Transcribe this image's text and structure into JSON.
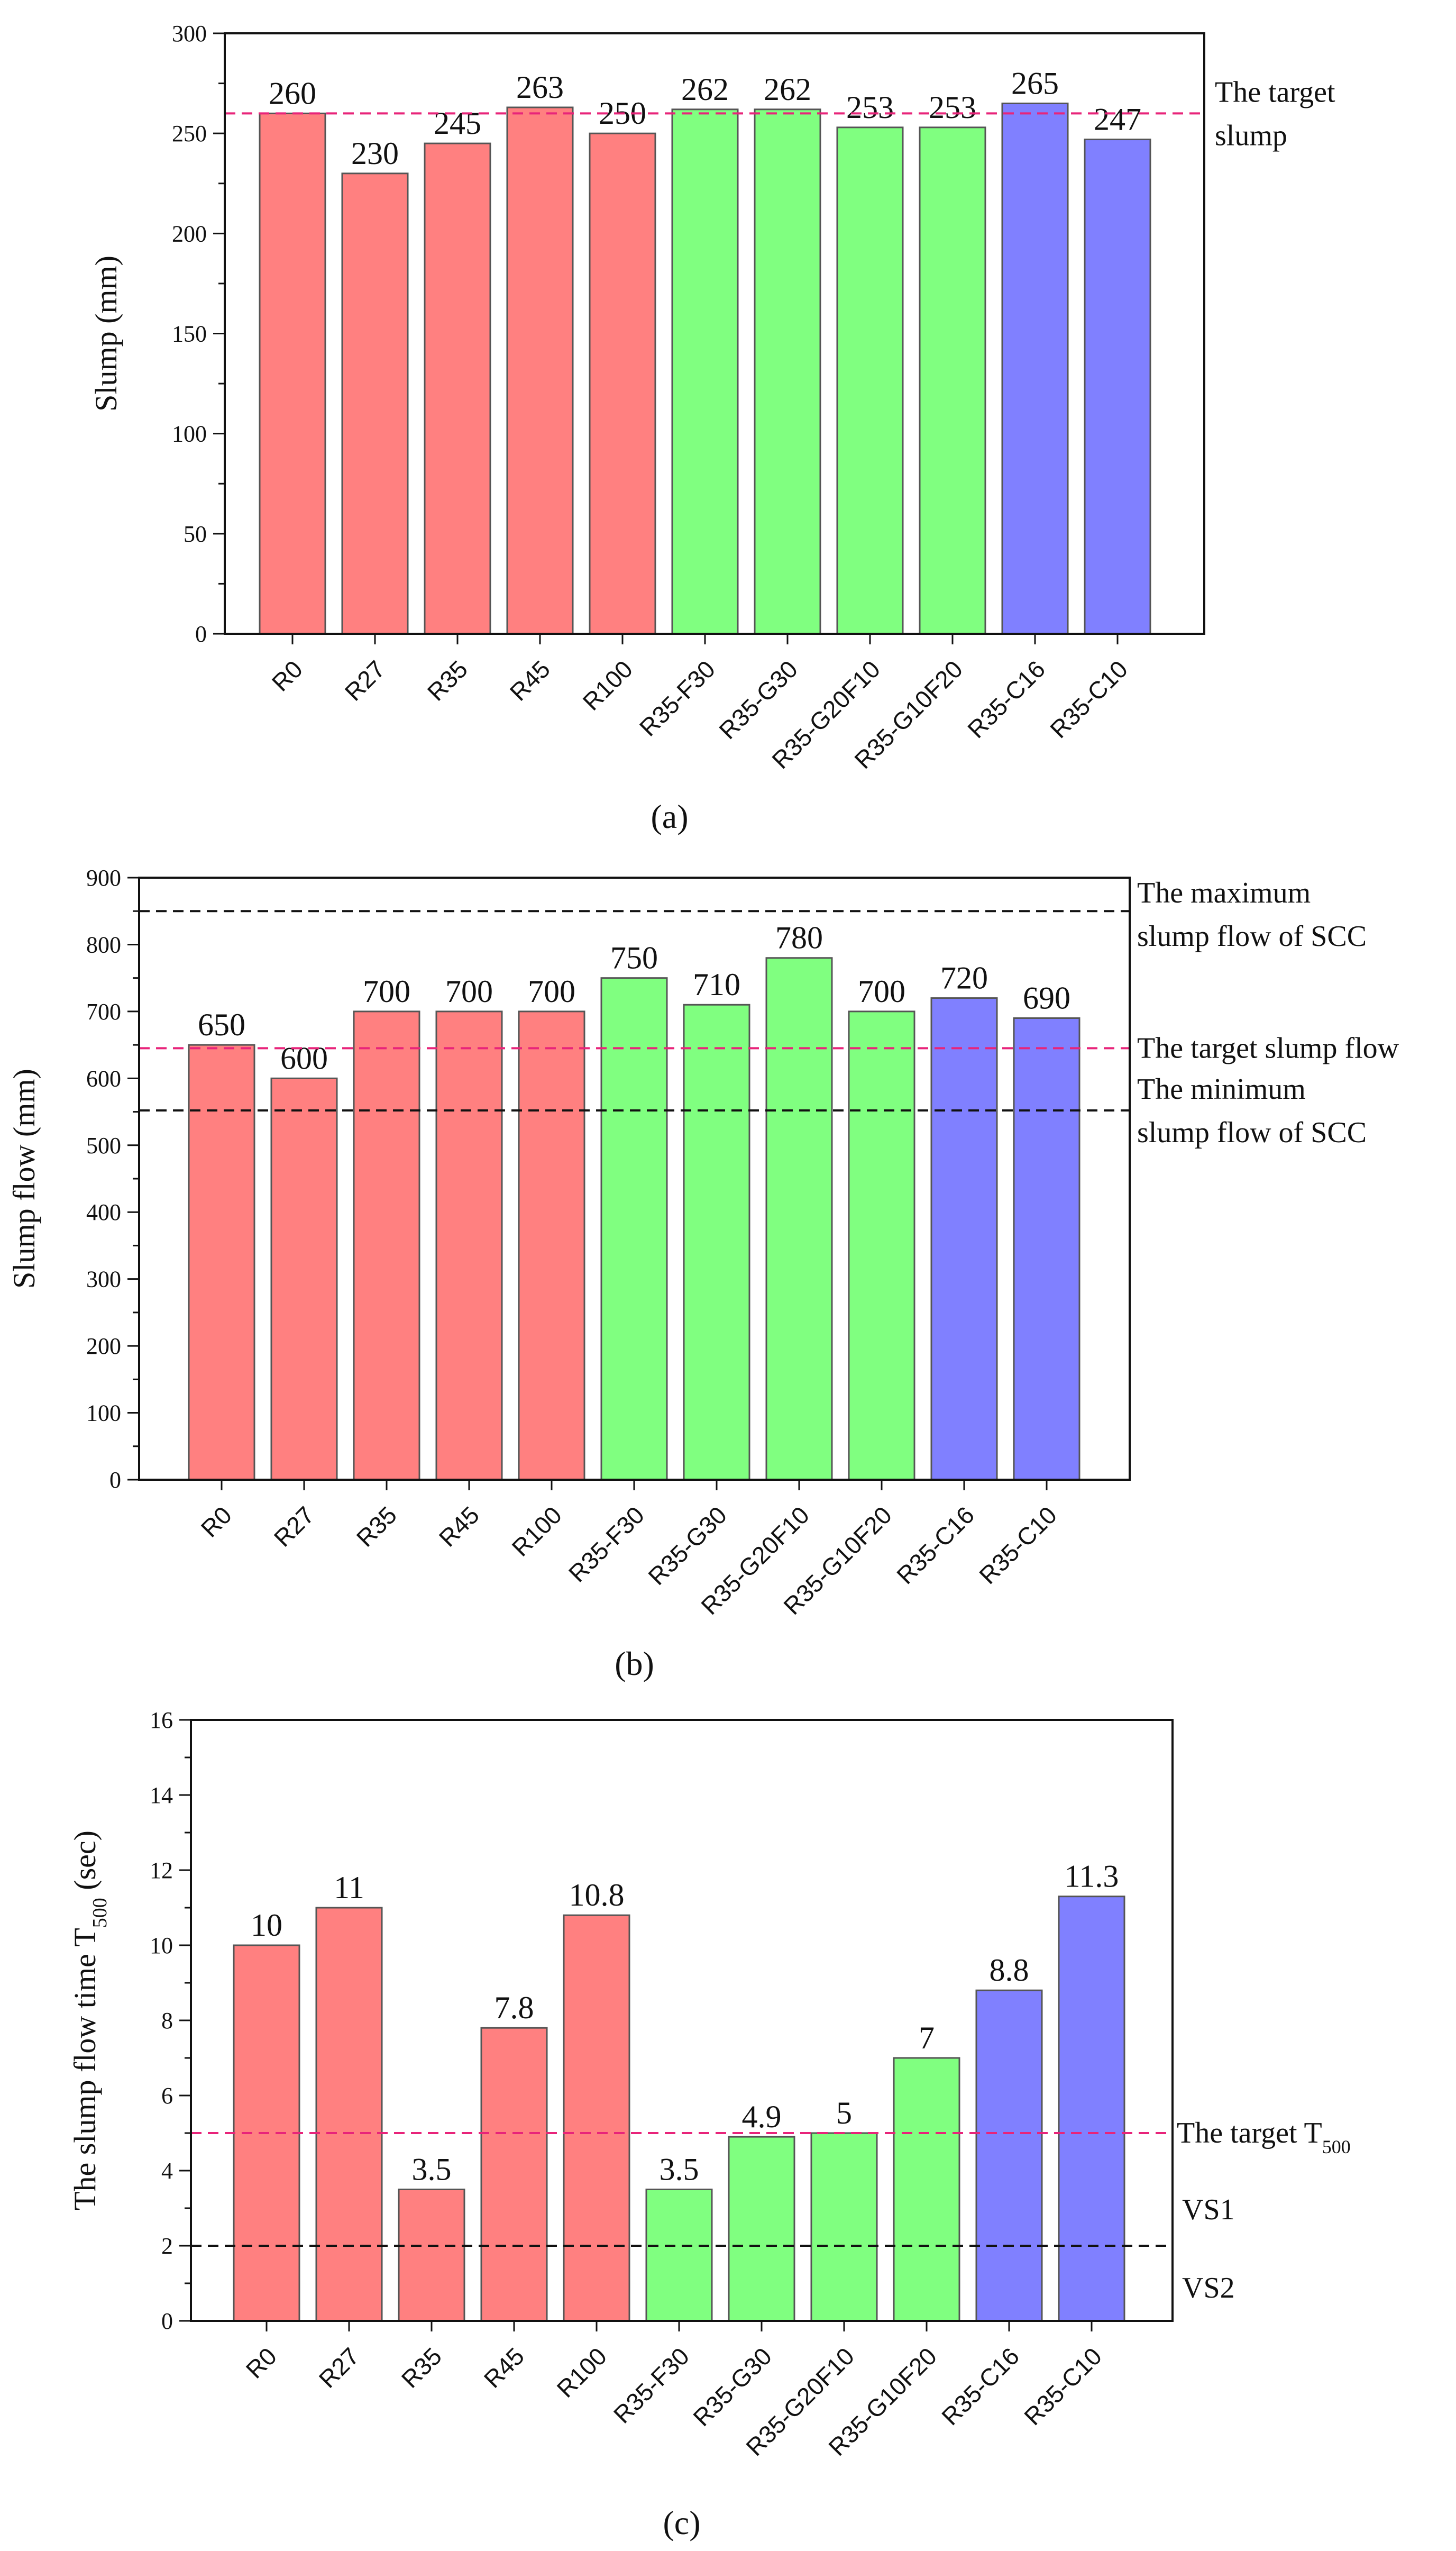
{
  "figure": {
    "colors": {
      "red": "#ff8080",
      "green": "#80ff80",
      "blue": "#8080ff",
      "target": "#e8247a",
      "limit": "#111111"
    }
  },
  "chart_data": [
    {
      "type": "bar",
      "panel_caption": "(a)",
      "ylabel": "Slump (mm)",
      "ylim": [
        0,
        300
      ],
      "yticks": [
        0,
        50,
        100,
        150,
        200,
        250,
        300
      ],
      "categories": [
        "R0",
        "R27",
        "R35",
        "R45",
        "R100",
        "R35-F30",
        "R35-G30",
        "R35-G20F10",
        "R35-G10F20",
        "R35-C16",
        "R35-C10"
      ],
      "values": [
        260,
        230,
        245,
        263,
        250,
        262,
        262,
        253,
        253,
        265,
        247
      ],
      "value_labels": [
        "260",
        "230",
        "245",
        "263",
        "250",
        "262",
        "262",
        "253",
        "253",
        "265",
        "247"
      ],
      "bar_colors": [
        "red",
        "red",
        "red",
        "red",
        "red",
        "green",
        "green",
        "green",
        "green",
        "blue",
        "blue"
      ],
      "reference_lines": [
        {
          "value": 260,
          "style": "target",
          "label_lines": [
            "The target",
            "slump"
          ]
        }
      ]
    },
    {
      "type": "bar",
      "panel_caption": "(b)",
      "ylabel": "Slump flow (mm)",
      "ylim": [
        0,
        900
      ],
      "yticks": [
        0,
        100,
        200,
        300,
        400,
        500,
        600,
        700,
        800,
        900
      ],
      "categories": [
        "R0",
        "R27",
        "R35",
        "R45",
        "R100",
        "R35-F30",
        "R35-G30",
        "R35-G20F10",
        "R35-G10F20",
        "R35-C16",
        "R35-C10"
      ],
      "values": [
        650,
        600,
        700,
        700,
        700,
        750,
        710,
        780,
        700,
        720,
        690
      ],
      "value_labels": [
        "650",
        "600",
        "700",
        "700",
        "700",
        "750",
        "710",
        "780",
        "700",
        "720",
        "690"
      ],
      "bar_colors": [
        "red",
        "red",
        "red",
        "red",
        "red",
        "green",
        "green",
        "green",
        "green",
        "blue",
        "blue"
      ],
      "reference_lines": [
        {
          "value": 850,
          "style": "limit",
          "label_lines": [
            "The maximum",
            "slump flow of SCC"
          ]
        },
        {
          "value": 645,
          "style": "target",
          "label_lines": [
            "The target slump flow"
          ]
        },
        {
          "value": 552,
          "style": "limit",
          "label_lines": [
            "The minimum",
            "slump flow of SCC"
          ]
        }
      ]
    },
    {
      "type": "bar",
      "panel_caption": "(c)",
      "ylabel": "The slump flow time T",
      "ylabel_sub": "500",
      "ylabel_unit": " (sec)",
      "ylim": [
        0,
        16
      ],
      "yticks": [
        0,
        2,
        4,
        6,
        8,
        10,
        12,
        14,
        16
      ],
      "categories": [
        "R0",
        "R27",
        "R35",
        "R45",
        "R100",
        "R35-F30",
        "R35-G30",
        "R35-G20F10",
        "R35-G10F20",
        "R35-C16",
        "R35-C10"
      ],
      "values": [
        10,
        11,
        3.5,
        7.8,
        10.8,
        3.5,
        4.9,
        5,
        7,
        8.8,
        11.3
      ],
      "value_labels": [
        "10",
        "11",
        "3.5",
        "7.8",
        "10.8",
        "3.5",
        "4.9",
        "5",
        "7",
        "8.8",
        "11.3"
      ],
      "bar_colors": [
        "red",
        "red",
        "red",
        "red",
        "red",
        "green",
        "green",
        "green",
        "green",
        "blue",
        "blue"
      ],
      "reference_lines": [
        {
          "value": 5,
          "style": "target",
          "label_lines": [
            "The target T"
          ],
          "label_sub": "500"
        },
        {
          "value": 2,
          "style": "limit",
          "label_lines": []
        }
      ],
      "region_labels": [
        "VS1",
        "VS2"
      ]
    }
  ]
}
